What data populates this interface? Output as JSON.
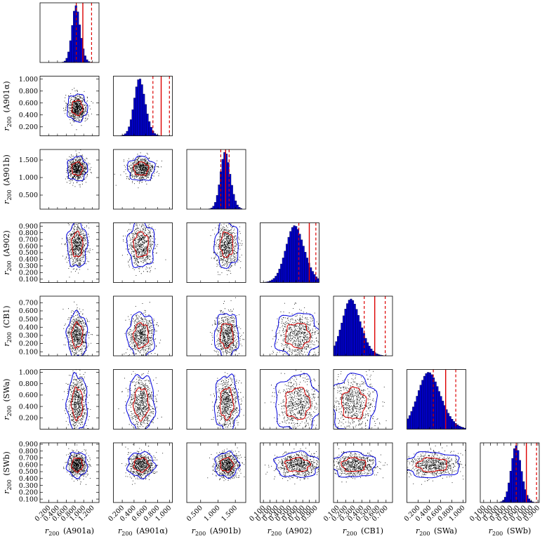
{
  "chart_data": {
    "type": "corner",
    "title": "",
    "label_prefix": "r",
    "label_subscript": "200",
    "variables": [
      {
        "name": "A901a",
        "label": "(A901a)",
        "ticks": [
          0.2,
          0.4,
          0.6,
          0.8,
          1.0,
          1.2
        ],
        "tick_labels": [
          "0.200",
          "0.400",
          "0.600",
          "0.800",
          "1.000",
          "1.200"
        ],
        "range": [
          0.0,
          1.35
        ],
        "mean": 0.85,
        "sd": 0.1,
        "hist_line": 0.98,
        "hist_dashed": [
          0.83,
          1.18
        ]
      },
      {
        "name": "A901α",
        "label": "(A901α)",
        "ticks": [
          0.2,
          0.4,
          0.6,
          0.8,
          1.0
        ],
        "tick_labels": [
          "0.200",
          "0.400",
          "0.600",
          "0.800",
          "1.000"
        ],
        "range": [
          0.05,
          1.05
        ],
        "mean": 0.52,
        "sd": 0.1,
        "hist_line": 0.86,
        "hist_dashed": [
          0.72,
          1.0
        ]
      },
      {
        "name": "A901b",
        "label": "(A901b)",
        "ticks": [
          0.5,
          1.0,
          1.5
        ],
        "tick_labels": [
          "0.500",
          "1.000",
          "1.500"
        ],
        "range": [
          0.1,
          1.8
        ],
        "mean": 1.25,
        "sd": 0.15,
        "hist_line": 1.22,
        "hist_dashed": [
          1.08,
          1.32
        ]
      },
      {
        "name": "A902",
        "label": "(A902)",
        "ticks": [
          0.1,
          0.2,
          0.3,
          0.4,
          0.5,
          0.6,
          0.7,
          0.8,
          0.9
        ],
        "tick_labels": [
          "0.100",
          "0.200",
          "0.300",
          "0.400",
          "0.500",
          "0.600",
          "0.700",
          "0.800",
          "0.900"
        ],
        "range": [
          0.05,
          0.95
        ],
        "mean": 0.62,
        "sd": 0.15,
        "hist_line": 0.8,
        "hist_dashed": [
          0.64,
          0.9
        ]
      },
      {
        "name": "CB1",
        "label": "(CB1)",
        "ticks": [
          0.1,
          0.2,
          0.3,
          0.4,
          0.5,
          0.6,
          0.7
        ],
        "tick_labels": [
          "0.100",
          "0.200",
          "0.300",
          "0.400",
          "0.500",
          "0.600",
          "0.700"
        ],
        "range": [
          0.05,
          0.78
        ],
        "mean": 0.3,
        "sd": 0.12,
        "hist_line": 0.56,
        "hist_dashed": [
          0.43,
          0.69
        ]
      },
      {
        "name": "SWa",
        "label": "(SWa)",
        "ticks": [
          0.2,
          0.4,
          0.6,
          0.8,
          1.0
        ],
        "tick_labels": [
          "0.200",
          "0.400",
          "0.600",
          "0.800",
          "1.000"
        ],
        "range": [
          0.0,
          1.05
        ],
        "mean": 0.45,
        "sd": 0.22,
        "hist_line": 0.69,
        "hist_dashed": [
          0.47,
          0.87
        ]
      },
      {
        "name": "SWb",
        "label": "(SWb)",
        "ticks": [
          0.1,
          0.2,
          0.3,
          0.4,
          0.5,
          0.6,
          0.7,
          0.8,
          0.9
        ],
        "tick_labels": [
          "0.100",
          "0.200",
          "0.300",
          "0.400",
          "0.500",
          "0.600",
          "0.700",
          "0.800",
          "0.900"
        ],
        "range": [
          0.05,
          0.92
        ],
        "mean": 0.6,
        "sd": 0.08,
        "hist_line": 0.73,
        "hist_dashed": [
          0.58,
          0.88
        ]
      }
    ],
    "histogram_color": "#0000cc",
    "histogram_edge": "#000033",
    "stat_line_color": "#dd0000",
    "scatter_color": "#000000",
    "contour_colors": [
      "#dd0000",
      "#0000dd"
    ]
  }
}
